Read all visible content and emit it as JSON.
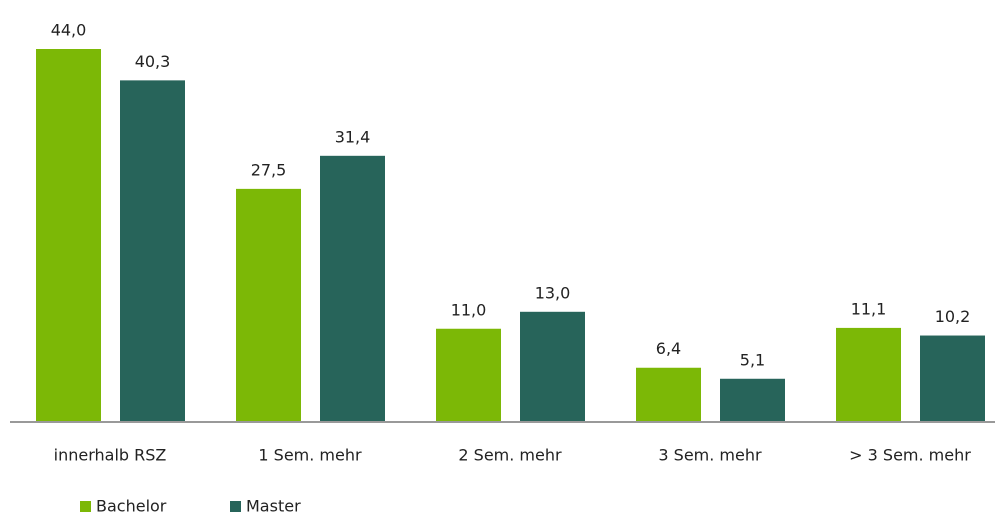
{
  "chart_data": {
    "type": "bar",
    "categories": [
      "innerhalb RSZ",
      "1 Sem. mehr",
      "2 Sem. mehr",
      "3 Sem. mehr",
      "> 3 Sem. mehr"
    ],
    "series": [
      {
        "name": "Bachelor",
        "color": "#7cb806",
        "values": [
          44.0,
          27.5,
          11.0,
          6.4,
          11.1
        ],
        "value_labels": [
          "44,0",
          "27,5",
          "11,0",
          "6,4",
          "11,1"
        ]
      },
      {
        "name": "Master",
        "color": "#27645a",
        "values": [
          40.3,
          31.4,
          13.0,
          5.1,
          10.2
        ],
        "value_labels": [
          "40,3",
          "31,4",
          "13,0",
          "5,1",
          "10,2"
        ]
      }
    ],
    "legend": "bottom-left"
  }
}
